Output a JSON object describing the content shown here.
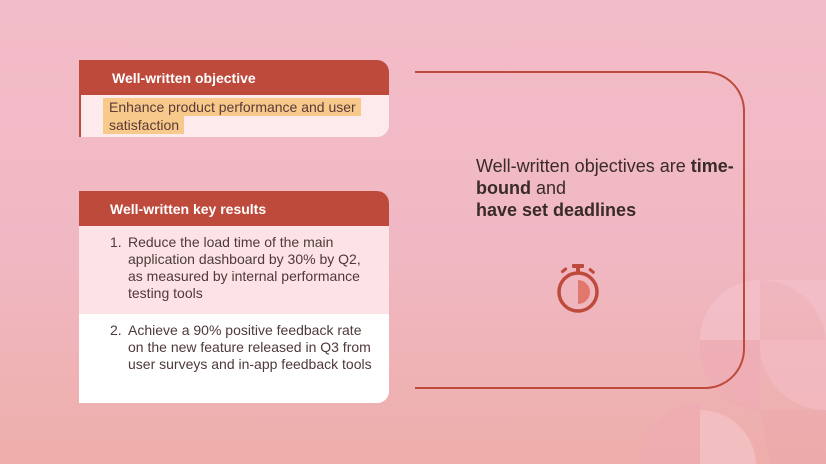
{
  "objective_card": {
    "title": "Well-written objective",
    "text": "Enhance product performance and user satisfaction"
  },
  "key_results_card": {
    "title": "Well-written key results",
    "items": [
      {
        "number": "1.",
        "text": "Reduce the load time of the main application dashboard by 30% by Q2, as measured by internal performance testing tools"
      },
      {
        "number": "2.",
        "text": "Achieve a 90% positive feedback rate on the new feature released in Q3 from user surveys and in-app feedback tools"
      }
    ]
  },
  "headline": {
    "part1": "Well-written objectives are ",
    "bold1": "time-bound",
    "part2": " and ",
    "bold2": "have set deadlines"
  },
  "icon": "stopwatch-icon",
  "colors": {
    "accent": "#be4a3c",
    "highlight": "#f7c98a",
    "background": "#f2bcc8"
  }
}
